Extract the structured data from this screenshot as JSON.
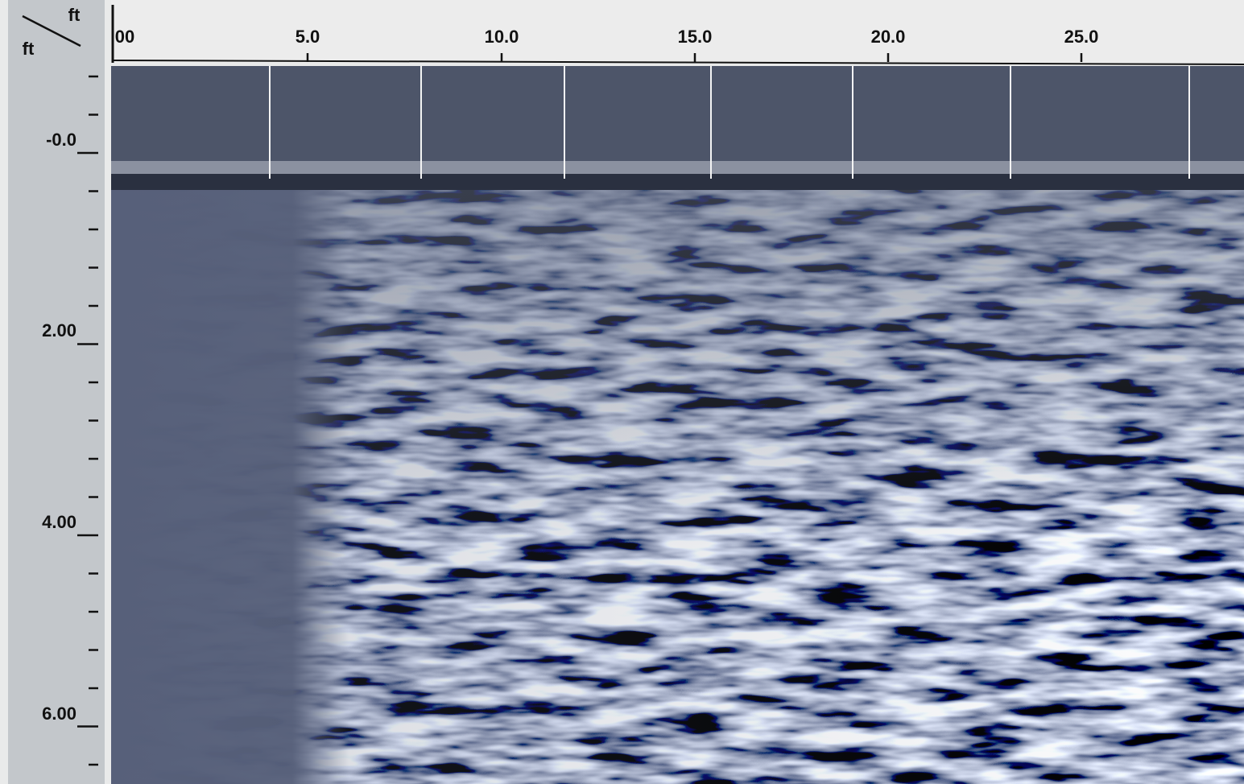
{
  "x_axis": {
    "unit": "ft",
    "tick_labels": [
      "00",
      "5.0",
      "10.0",
      "15.0",
      "20.0",
      "25.0"
    ]
  },
  "y_axis": {
    "unit": "ft",
    "tick_labels": [
      "-0.0",
      "2.00",
      "4.00",
      "6.00"
    ]
  }
}
